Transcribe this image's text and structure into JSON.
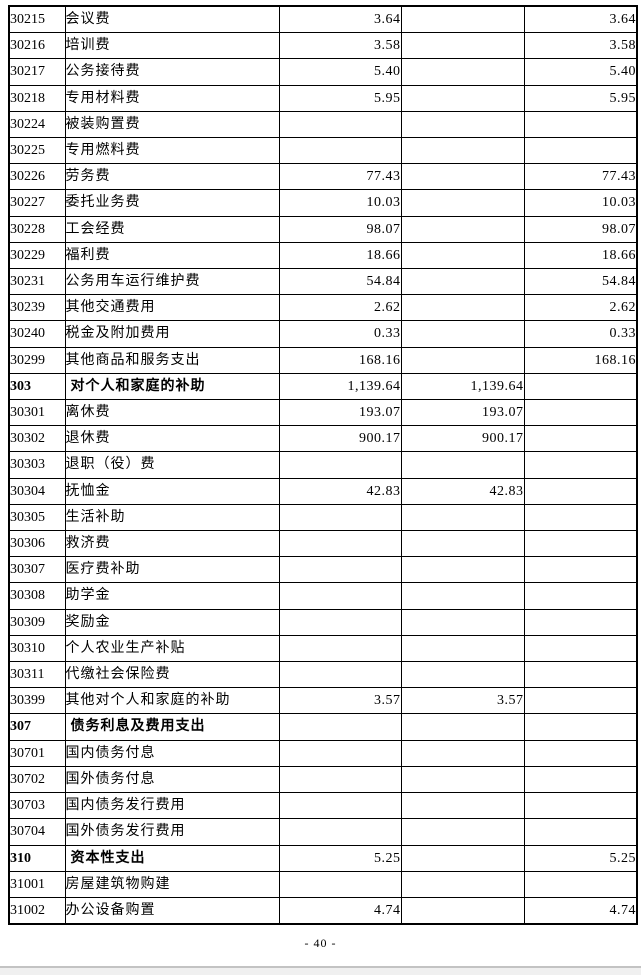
{
  "page": {
    "number_label": "- 40 -"
  },
  "viewer": {
    "page_gap_color": "#f0f0f0",
    "page_gap_border_color": "#c3c3c3"
  },
  "table": {
    "rows": [
      {
        "code": "30215",
        "name": "会议费",
        "level": "item",
        "amount1": "3.64",
        "amount2": "",
        "amount3": "3.64"
      },
      {
        "code": "30216",
        "name": "培训费",
        "level": "item",
        "amount1": "3.58",
        "amount2": "",
        "amount3": "3.58"
      },
      {
        "code": "30217",
        "name": "公务接待费",
        "level": "item",
        "amount1": "5.40",
        "amount2": "",
        "amount3": "5.40"
      },
      {
        "code": "30218",
        "name": "专用材料费",
        "level": "item",
        "amount1": "5.95",
        "amount2": "",
        "amount3": "5.95"
      },
      {
        "code": "30224",
        "name": "被装购置费",
        "level": "item",
        "amount1": "",
        "amount2": "",
        "amount3": ""
      },
      {
        "code": "30225",
        "name": "专用燃料费",
        "level": "item",
        "amount1": "",
        "amount2": "",
        "amount3": ""
      },
      {
        "code": "30226",
        "name": "劳务费",
        "level": "item",
        "amount1": "77.43",
        "amount2": "",
        "amount3": "77.43"
      },
      {
        "code": "30227",
        "name": "委托业务费",
        "level": "item",
        "amount1": "10.03",
        "amount2": "",
        "amount3": "10.03"
      },
      {
        "code": "30228",
        "name": "工会经费",
        "level": "item",
        "amount1": "98.07",
        "amount2": "",
        "amount3": "98.07"
      },
      {
        "code": "30229",
        "name": "福利费",
        "level": "item",
        "amount1": "18.66",
        "amount2": "",
        "amount3": "18.66"
      },
      {
        "code": "30231",
        "name": "公务用车运行维护费",
        "level": "item",
        "amount1": "54.84",
        "amount2": "",
        "amount3": "54.84"
      },
      {
        "code": "30239",
        "name": "其他交通费用",
        "level": "item",
        "amount1": "2.62",
        "amount2": "",
        "amount3": "2.62"
      },
      {
        "code": "30240",
        "name": "税金及附加费用",
        "level": "item",
        "amount1": "0.33",
        "amount2": "",
        "amount3": "0.33"
      },
      {
        "code": "30299",
        "name": "其他商品和服务支出",
        "level": "item",
        "amount1": "168.16",
        "amount2": "",
        "amount3": "168.16"
      },
      {
        "code": "303",
        "name": "对个人和家庭的补助",
        "level": "section",
        "amount1": "1,139.64",
        "amount2": "1,139.64",
        "amount3": ""
      },
      {
        "code": "30301",
        "name": "离休费",
        "level": "item",
        "amount1": "193.07",
        "amount2": "193.07",
        "amount3": ""
      },
      {
        "code": "30302",
        "name": "退休费",
        "level": "item",
        "amount1": "900.17",
        "amount2": "900.17",
        "amount3": ""
      },
      {
        "code": "30303",
        "name": "退职（役）费",
        "level": "item",
        "amount1": "",
        "amount2": "",
        "amount3": ""
      },
      {
        "code": "30304",
        "name": "抚恤金",
        "level": "item",
        "amount1": "42.83",
        "amount2": "42.83",
        "amount3": ""
      },
      {
        "code": "30305",
        "name": "生活补助",
        "level": "item",
        "amount1": "",
        "amount2": "",
        "amount3": ""
      },
      {
        "code": "30306",
        "name": "救济费",
        "level": "item",
        "amount1": "",
        "amount2": "",
        "amount3": ""
      },
      {
        "code": "30307",
        "name": "医疗费补助",
        "level": "item",
        "amount1": "",
        "amount2": "",
        "amount3": ""
      },
      {
        "code": "30308",
        "name": "助学金",
        "level": "item",
        "amount1": "",
        "amount2": "",
        "amount3": ""
      },
      {
        "code": "30309",
        "name": "奖励金",
        "level": "item",
        "amount1": "",
        "amount2": "",
        "amount3": ""
      },
      {
        "code": "30310",
        "name": "个人农业生产补贴",
        "level": "item",
        "amount1": "",
        "amount2": "",
        "amount3": ""
      },
      {
        "code": "30311",
        "name": "代缴社会保险费",
        "level": "item",
        "amount1": "",
        "amount2": "",
        "amount3": ""
      },
      {
        "code": "30399",
        "name": "其他对个人和家庭的补助",
        "level": "item",
        "amount1": "3.57",
        "amount2": "3.57",
        "amount3": ""
      },
      {
        "code": "307",
        "name": "债务利息及费用支出",
        "level": "section",
        "amount1": "",
        "amount2": "",
        "amount3": ""
      },
      {
        "code": "30701",
        "name": "国内债务付息",
        "level": "item",
        "amount1": "",
        "amount2": "",
        "amount3": ""
      },
      {
        "code": "30702",
        "name": "国外债务付息",
        "level": "item",
        "amount1": "",
        "amount2": "",
        "amount3": ""
      },
      {
        "code": "30703",
        "name": "国内债务发行费用",
        "level": "item",
        "amount1": "",
        "amount2": "",
        "amount3": ""
      },
      {
        "code": "30704",
        "name": "国外债务发行费用",
        "level": "item",
        "amount1": "",
        "amount2": "",
        "amount3": ""
      },
      {
        "code": "310",
        "name": "资本性支出",
        "level": "section",
        "amount1": "5.25",
        "amount2": "",
        "amount3": "5.25"
      },
      {
        "code": "31001",
        "name": "房屋建筑物购建",
        "level": "item",
        "amount1": "",
        "amount2": "",
        "amount3": ""
      },
      {
        "code": "31002",
        "name": "办公设备购置",
        "level": "item",
        "amount1": "4.74",
        "amount2": "",
        "amount3": "4.74"
      }
    ]
  }
}
